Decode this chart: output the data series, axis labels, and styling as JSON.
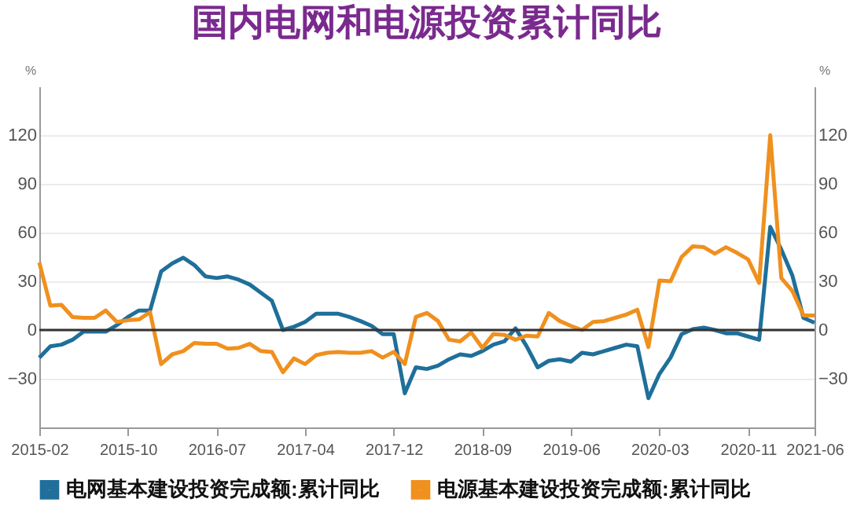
{
  "chart_data": {
    "type": "line",
    "title": "国内电网和电源投资累计同比",
    "ylabel": "%",
    "y2label": "%",
    "categories": [
      "2015-02",
      null,
      null,
      null,
      null,
      null,
      null,
      null,
      "2015-10",
      null,
      null,
      null,
      null,
      null,
      null,
      null,
      "2016-07",
      null,
      null,
      null,
      null,
      null,
      null,
      null,
      "2017-04",
      null,
      null,
      null,
      null,
      null,
      null,
      null,
      "2017-12",
      null,
      null,
      null,
      null,
      null,
      null,
      null,
      "2018-09",
      null,
      null,
      null,
      null,
      null,
      null,
      null,
      "2019-06",
      null,
      null,
      null,
      null,
      null,
      null,
      null,
      "2020-03",
      null,
      null,
      null,
      null,
      null,
      null,
      null,
      "2020-11",
      null,
      null,
      null,
      null,
      null,
      "2021-06"
    ],
    "series": [
      {
        "name": "电网基本建设投资完成额:累计同比",
        "color": "#1f6f9a",
        "values": [
          -17,
          -10,
          -9,
          -6,
          -1,
          -1,
          -1,
          3,
          8,
          12,
          12,
          36,
          41,
          44.5,
          40,
          33,
          32,
          33,
          31,
          28,
          23,
          18,
          0,
          2,
          5,
          10,
          10,
          10,
          8,
          5.5,
          2.5,
          -2.5,
          -2.5,
          -39,
          -23,
          -24,
          -22,
          -18,
          -15,
          -16,
          -13,
          -9,
          -7,
          1,
          -10,
          -23,
          -19,
          -18,
          -19.5,
          -14,
          -15,
          -13,
          -11,
          -9,
          -10,
          -42,
          -27,
          -17,
          -2.5,
          0.5,
          1.5,
          0,
          -2,
          -2,
          -4,
          -6,
          63.5,
          49.5,
          33.5,
          7.5,
          4.5
        ]
      },
      {
        "name": "电源基本建设投资完成额:累计同比",
        "color": "#f0901e",
        "values": [
          41.5,
          15,
          15.5,
          8,
          7.5,
          7.5,
          12,
          5,
          6,
          6.5,
          11,
          -21,
          -15,
          -13,
          -8,
          -8.5,
          -8.5,
          -11.5,
          -11,
          -8.5,
          -13,
          -13.5,
          -26,
          -17.5,
          -21,
          -15.5,
          -14,
          -13.5,
          -14,
          -14,
          -13,
          -17,
          -13.5,
          -21,
          8,
          10.5,
          5.5,
          -6,
          -7,
          -1.5,
          -11,
          -2.5,
          -3,
          -6,
          -3.5,
          -4,
          10.5,
          5.5,
          2.5,
          0,
          5,
          5.5,
          7.5,
          9.5,
          12.5,
          -10.5,
          30.5,
          30,
          45,
          51.5,
          51,
          47,
          51,
          47.5,
          43.5,
          29,
          120,
          32,
          24,
          9,
          9
        ]
      }
    ],
    "ylim": [
      -60,
      150
    ],
    "yticks": [
      -30,
      0,
      30,
      60,
      90,
      120
    ],
    "y2lim": [
      -60,
      150
    ],
    "y2ticks": [
      -30,
      0,
      30,
      60,
      90,
      120
    ],
    "ref_lines": [
      {
        "axis": "y",
        "value": 0,
        "color": "#333333"
      }
    ],
    "grid": "y",
    "legend": "bottom"
  }
}
